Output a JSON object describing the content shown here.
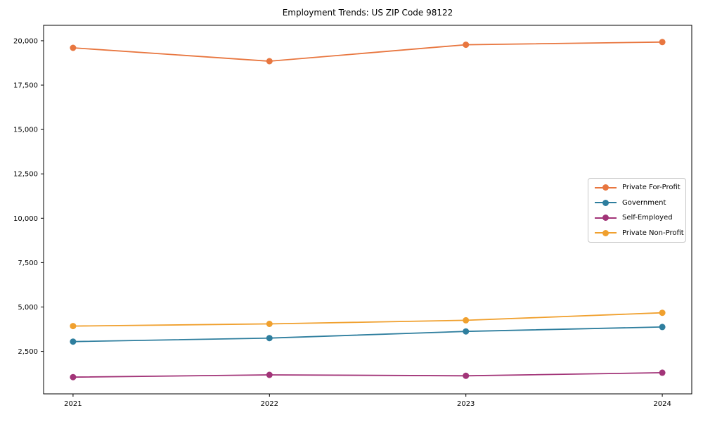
{
  "chart_data": {
    "type": "line",
    "title": "Employment Trends: US ZIP Code 98122",
    "xlabel": "",
    "ylabel": "",
    "categories": [
      "2021",
      "2022",
      "2023",
      "2024"
    ],
    "x": [
      2021,
      2022,
      2023,
      2024
    ],
    "series": [
      {
        "name": "Private For-Profit",
        "color": "#e8763f",
        "values": [
          19600,
          18850,
          19775,
          19925
        ]
      },
      {
        "name": "Government",
        "color": "#2e7e9e",
        "values": [
          3050,
          3250,
          3625,
          3875
        ]
      },
      {
        "name": "Self-Employed",
        "color": "#a23478",
        "values": [
          1050,
          1175,
          1125,
          1300
        ]
      },
      {
        "name": "Private Non-Profit",
        "color": "#f0a02e",
        "values": [
          3925,
          4050,
          4250,
          4675
        ]
      }
    ],
    "y_ticks": [
      2500,
      5000,
      7500,
      10000,
      12500,
      15000,
      17500,
      20000
    ],
    "y_tick_labels": [
      "2,500",
      "5,000",
      "7,500",
      "10,000",
      "12,500",
      "15,000",
      "17,500",
      "20,000"
    ],
    "ylim": [
      106,
      20869
    ],
    "xlim": [
      2020.85,
      2024.15
    ],
    "grid": false,
    "legend_position": "center right",
    "marker": "circle",
    "axes_color": "#000000",
    "background": "#ffffff"
  }
}
